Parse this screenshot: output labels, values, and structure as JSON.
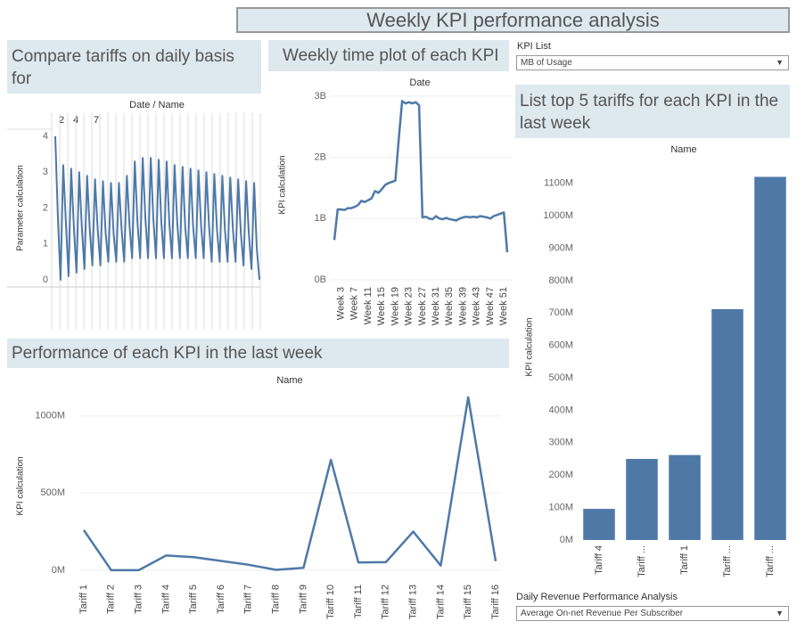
{
  "dashboard_title": "Weekly KPI performance analysis",
  "controls": [
    {
      "label": "KPI List",
      "value": "MB of Usage"
    },
    {
      "label": "Daily Revenue Performance Analysis",
      "value": "Average On-net Revenue Per Subscriber"
    }
  ],
  "chart_data": [
    {
      "type": "line",
      "title": "Compare tariffs on daily basis for",
      "x_header": "Date / Name",
      "column_labels": [
        "2",
        "4",
        "7"
      ],
      "y_label": "Parameter calculation",
      "color": "#4e79a7",
      "values": [
        4.0,
        1.7,
        0.0,
        3.2,
        1.6,
        0.1,
        3.1,
        1.5,
        0.2,
        3.0,
        1.5,
        0.3,
        2.9,
        1.4,
        0.4,
        2.8,
        1.4,
        0.4,
        2.75,
        1.3,
        0.5,
        2.7,
        1.3,
        0.5,
        2.7,
        1.4,
        0.5,
        2.9,
        1.5,
        0.6,
        3.3,
        1.6,
        0.6,
        3.4,
        1.7,
        0.6,
        3.4,
        1.7,
        0.6,
        3.35,
        1.6,
        0.6,
        3.3,
        1.6,
        0.6,
        3.2,
        1.6,
        0.6,
        3.15,
        1.5,
        0.6,
        3.1,
        1.5,
        0.6,
        3.05,
        1.5,
        0.6,
        3.0,
        1.5,
        0.5,
        2.95,
        1.4,
        0.5,
        2.9,
        1.4,
        0.5,
        2.85,
        1.4,
        0.5,
        2.8,
        1.3,
        0.4,
        2.75,
        1.3,
        0.3,
        2.7,
        0.9,
        0.0
      ],
      "ylim": [
        -0.2,
        4.2
      ],
      "yticks": [
        0,
        1,
        2,
        3,
        4
      ],
      "grid": false
    },
    {
      "type": "line",
      "title": "Weekly time plot of each KPI",
      "x_header": "Date",
      "y_label": "KPI calculation",
      "color": "#4e79a7",
      "categories": [
        null,
        null,
        "Week 3",
        null,
        null,
        null,
        "Week 7",
        null,
        null,
        null,
        "Week 11",
        null,
        null,
        null,
        "Week 15",
        null,
        null,
        null,
        "Week 19",
        null,
        null,
        null,
        "Week 23",
        null,
        null,
        null,
        "Week 27",
        null,
        null,
        null,
        "Week 31",
        null,
        null,
        null,
        "Week 35",
        null,
        null,
        null,
        "Week 39",
        null,
        null,
        null,
        "Week 43",
        null,
        null,
        null,
        "Week 47",
        null,
        null,
        null,
        "Week 51",
        null
      ],
      "values": [
        650000000,
        1150000000,
        1150000000,
        1140000000,
        1170000000,
        1170000000,
        1190000000,
        1220000000,
        1290000000,
        1270000000,
        1300000000,
        1330000000,
        1450000000,
        1420000000,
        1480000000,
        1550000000,
        1580000000,
        1600000000,
        1620000000,
        2300000000,
        2920000000,
        2880000000,
        2900000000,
        2880000000,
        2900000000,
        2850000000,
        1020000000,
        1030000000,
        1000000000,
        990000000,
        1040000000,
        1000000000,
        990000000,
        1010000000,
        990000000,
        980000000,
        970000000,
        1000000000,
        1020000000,
        1030000000,
        1020000000,
        1030000000,
        1020000000,
        1040000000,
        1030000000,
        1020000000,
        1000000000,
        1040000000,
        1060000000,
        1080000000,
        1100000000,
        450000000
      ],
      "ylim": [
        0,
        3100000000
      ],
      "yticks": [
        {
          "value": 0,
          "label": "0B"
        },
        {
          "value": 1000000000,
          "label": "1B"
        },
        {
          "value": 2000000000,
          "label": "2B"
        },
        {
          "value": 3000000000,
          "label": "3B"
        }
      ],
      "grid": true
    },
    {
      "type": "line",
      "title": "Performance of each KPI in the last week",
      "x_header": "Name",
      "y_label": "KPI calculation",
      "color": "#4e79a7",
      "categories": [
        "Tariff 1",
        "Tariff 2",
        "Tariff 3",
        "Tariff 4",
        "Tariff 5",
        "Tariff 6",
        "Tariff 7",
        "Tariff 8",
        "Tariff 9",
        "Tariff 10",
        "Tariff 11",
        "Tariff 12",
        "Tariff 13",
        "Tariff 14",
        "Tariff 15",
        "Tariff 16"
      ],
      "values": [
        260000000,
        0,
        0,
        95000000,
        85000000,
        60000000,
        35000000,
        2000000,
        15000000,
        715000000,
        50000000,
        52000000,
        250000000,
        30000000,
        1120000000,
        58000000
      ],
      "ylim": [
        -70000000,
        1160000000
      ],
      "yticks": [
        {
          "value": 0,
          "label": "0M"
        },
        {
          "value": 500000000,
          "label": "500M"
        },
        {
          "value": 1000000000,
          "label": "1000M"
        }
      ],
      "grid": true
    },
    {
      "type": "bar",
      "title": "List top 5 tariffs for each KPI in the last week",
      "x_header": "Name",
      "y_label": "KPI calculation",
      "color": "#4e79a7",
      "categories": [
        "Tariff 4",
        "Tariff ...",
        "Tariff 1",
        "Tariff ...",
        "Tariff ..."
      ],
      "values": [
        96000000,
        250000000,
        262000000,
        712000000,
        1120000000
      ],
      "ylim": [
        0,
        1190000000
      ],
      "yticks": [
        {
          "value": 0,
          "label": "0M"
        },
        {
          "value": 100000000,
          "label": "100M"
        },
        {
          "value": 200000000,
          "label": "200M"
        },
        {
          "value": 300000000,
          "label": "300M"
        },
        {
          "value": 400000000,
          "label": "400M"
        },
        {
          "value": 500000000,
          "label": "500M"
        },
        {
          "value": 600000000,
          "label": "600M"
        },
        {
          "value": 700000000,
          "label": "700M"
        },
        {
          "value": 800000000,
          "label": "800M"
        },
        {
          "value": 900000000,
          "label": "900M"
        },
        {
          "value": 1000000000,
          "label": "1000M"
        },
        {
          "value": 1100000000,
          "label": "1100M"
        }
      ],
      "grid": false
    }
  ]
}
